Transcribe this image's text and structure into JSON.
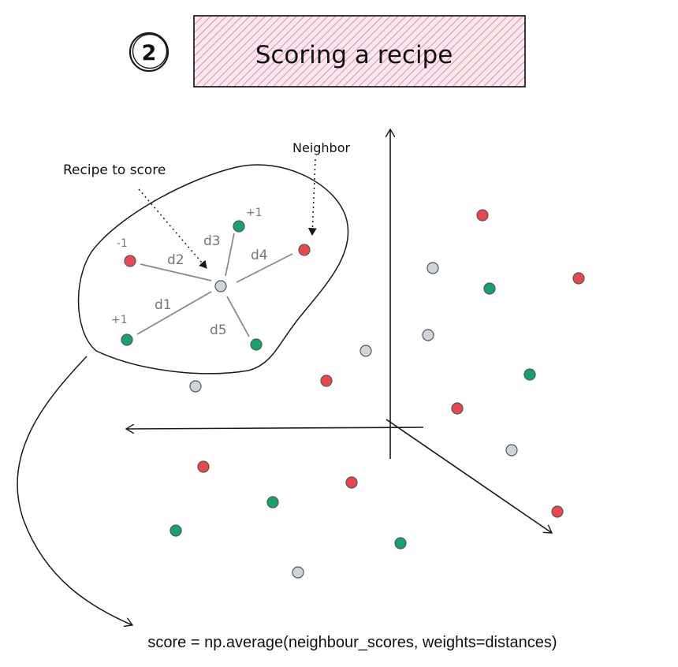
{
  "step": {
    "number": "2"
  },
  "title": {
    "text": "Scoring a recipe",
    "fill_color": "#f2b8c6",
    "stroke_color": "#222222"
  },
  "annotations": {
    "recipe_to_score": "Recipe to score",
    "neighbor": "Neighbor"
  },
  "neighbour_labels": {
    "left": "-1",
    "top": "+1",
    "bottom_left": "+1"
  },
  "distance_labels": [
    "d1",
    "d2",
    "d3",
    "d4",
    "d5"
  ],
  "formula": "score = np.average(neighbour_scores, weights=distances)",
  "colors": {
    "red": "#e8494e",
    "green": "#16a36b",
    "gray": "#ced4da",
    "edge_gray": "#555555",
    "spoke": "#8a8a8a",
    "ink": "#1a1a1a"
  }
}
